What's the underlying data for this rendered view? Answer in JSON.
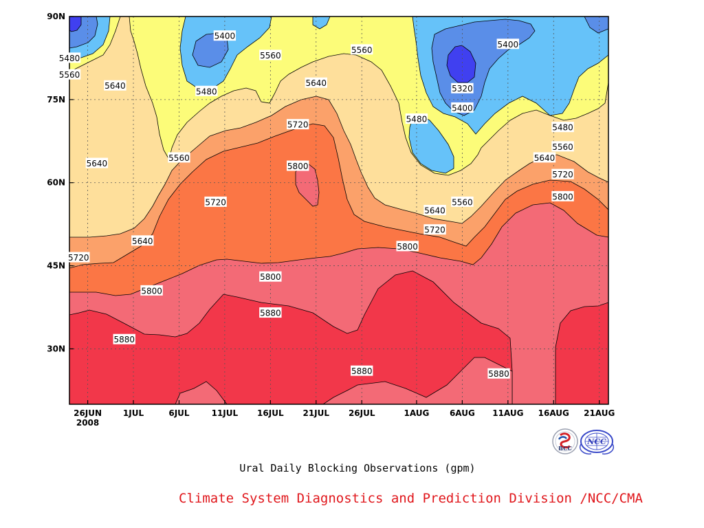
{
  "page": {
    "title": "Ural Daily Blocking Observations (gpm)",
    "credit": "Climate System Diagnostics and Prediction Division /NCC/CMA"
  },
  "logos": {
    "left": {
      "name": "bcc-logo",
      "text": "BCC"
    },
    "right": {
      "name": "ncc-logo",
      "text": "NCC"
    }
  },
  "chart_data": {
    "type": "contour",
    "title": "Ural Daily Blocking Observations (gpm)",
    "x_axis": {
      "first_label_year": "2008",
      "ticks": [
        "26JUN",
        "1JUL",
        "6JUL",
        "11JUL",
        "16JUL",
        "21JUL",
        "26JUL",
        "1AUG",
        "6AUG",
        "11AUG",
        "16AUG",
        "21AUG"
      ],
      "range": [
        "24JUN2008",
        "22AUG2008"
      ]
    },
    "y_axis": {
      "ticks": [
        "30N",
        "45N",
        "60N",
        "75N",
        "90N"
      ],
      "tick_values": [
        30,
        45,
        60,
        75,
        90
      ],
      "range": [
        20,
        90
      ],
      "unit": "degrees latitude"
    },
    "grid": true,
    "contour_levels": [
      5320,
      5400,
      5480,
      5560,
      5640,
      5720,
      5800,
      5880
    ],
    "fill_colors": {
      "below_5320": "#4040f0",
      "5320_5400": "#5a8ee8",
      "5400_5480": "#66c2f9",
      "5480_5560": "#fcfc79",
      "5560_5640": "#fedf9b",
      "5640_5720": "#fba16a",
      "5720_5800": "#fb7645",
      "5800_5880": "#f36a76",
      "above_5880": "#f2374a"
    },
    "contour_labels": [
      {
        "value": "5400",
        "date": "11JUL",
        "lat": 86.5
      },
      {
        "value": "5480",
        "date": "24JUN",
        "lat": 82.5
      },
      {
        "value": "5560",
        "date": "24JUN",
        "lat": 79.5
      },
      {
        "value": "5640",
        "date": "29JUN",
        "lat": 77.5
      },
      {
        "value": "5480",
        "date": "9JUL",
        "lat": 76.5
      },
      {
        "value": "5560",
        "date": "16JUL",
        "lat": 83.0
      },
      {
        "value": "5560",
        "date": "26JUL",
        "lat": 84.0
      },
      {
        "value": "5640",
        "date": "21JUL",
        "lat": 78.0
      },
      {
        "value": "5640",
        "date": "27JUN",
        "lat": 63.5
      },
      {
        "value": "5560",
        "date": "6JUL",
        "lat": 64.5
      },
      {
        "value": "5720",
        "date": "19JUL",
        "lat": 70.5
      },
      {
        "value": "5800",
        "date": "19JUL",
        "lat": 63.0
      },
      {
        "value": "5720",
        "date": "10JUL",
        "lat": 56.5
      },
      {
        "value": "5640",
        "date": "2JUL",
        "lat": 49.5
      },
      {
        "value": "5720",
        "date": "25JUN",
        "lat": 46.5
      },
      {
        "value": "5800",
        "date": "3JUL",
        "lat": 40.5
      },
      {
        "value": "5800",
        "date": "16JUL",
        "lat": 43.0
      },
      {
        "value": "5880",
        "date": "16JUL",
        "lat": 36.5
      },
      {
        "value": "5880",
        "date": "30JUN",
        "lat": 31.7
      },
      {
        "value": "5800",
        "date": "31JUL",
        "lat": 48.5
      },
      {
        "value": "5720",
        "date": "3AUG",
        "lat": 51.5
      },
      {
        "value": "5640",
        "date": "3AUG",
        "lat": 55.0
      },
      {
        "value": "5560",
        "date": "6AUG",
        "lat": 56.5
      },
      {
        "value": "5480",
        "date": "1AUG",
        "lat": 71.5
      },
      {
        "value": "5320",
        "date": "6AUG",
        "lat": 77.0
      },
      {
        "value": "5400",
        "date": "6AUG",
        "lat": 73.5
      },
      {
        "value": "5400",
        "date": "11AUG",
        "lat": 85.0
      },
      {
        "value": "5480",
        "date": "17AUG",
        "lat": 70.0
      },
      {
        "value": "5560",
        "date": "17AUG",
        "lat": 66.5
      },
      {
        "value": "5640",
        "date": "15AUG",
        "lat": 64.5
      },
      {
        "value": "5720",
        "date": "17AUG",
        "lat": 61.5
      },
      {
        "value": "5800",
        "date": "17AUG",
        "lat": 57.5
      },
      {
        "value": "5880",
        "date": "26JUL",
        "lat": 26.0
      },
      {
        "value": "5880",
        "date": "10AUG",
        "lat": 25.5
      }
    ]
  }
}
